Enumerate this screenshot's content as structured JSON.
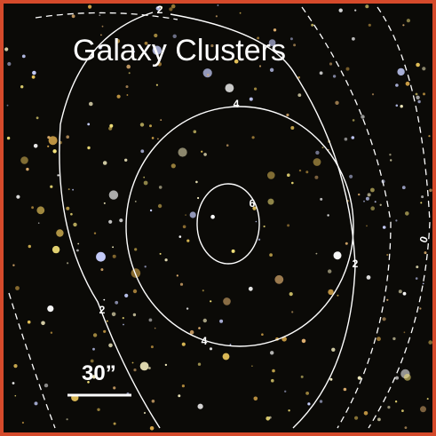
{
  "title": "Galaxy Clusters",
  "scale_bar": {
    "label": "30”"
  },
  "contour_labels": [
    "2",
    "4",
    "6",
    "2",
    "2",
    "4",
    "0"
  ]
}
